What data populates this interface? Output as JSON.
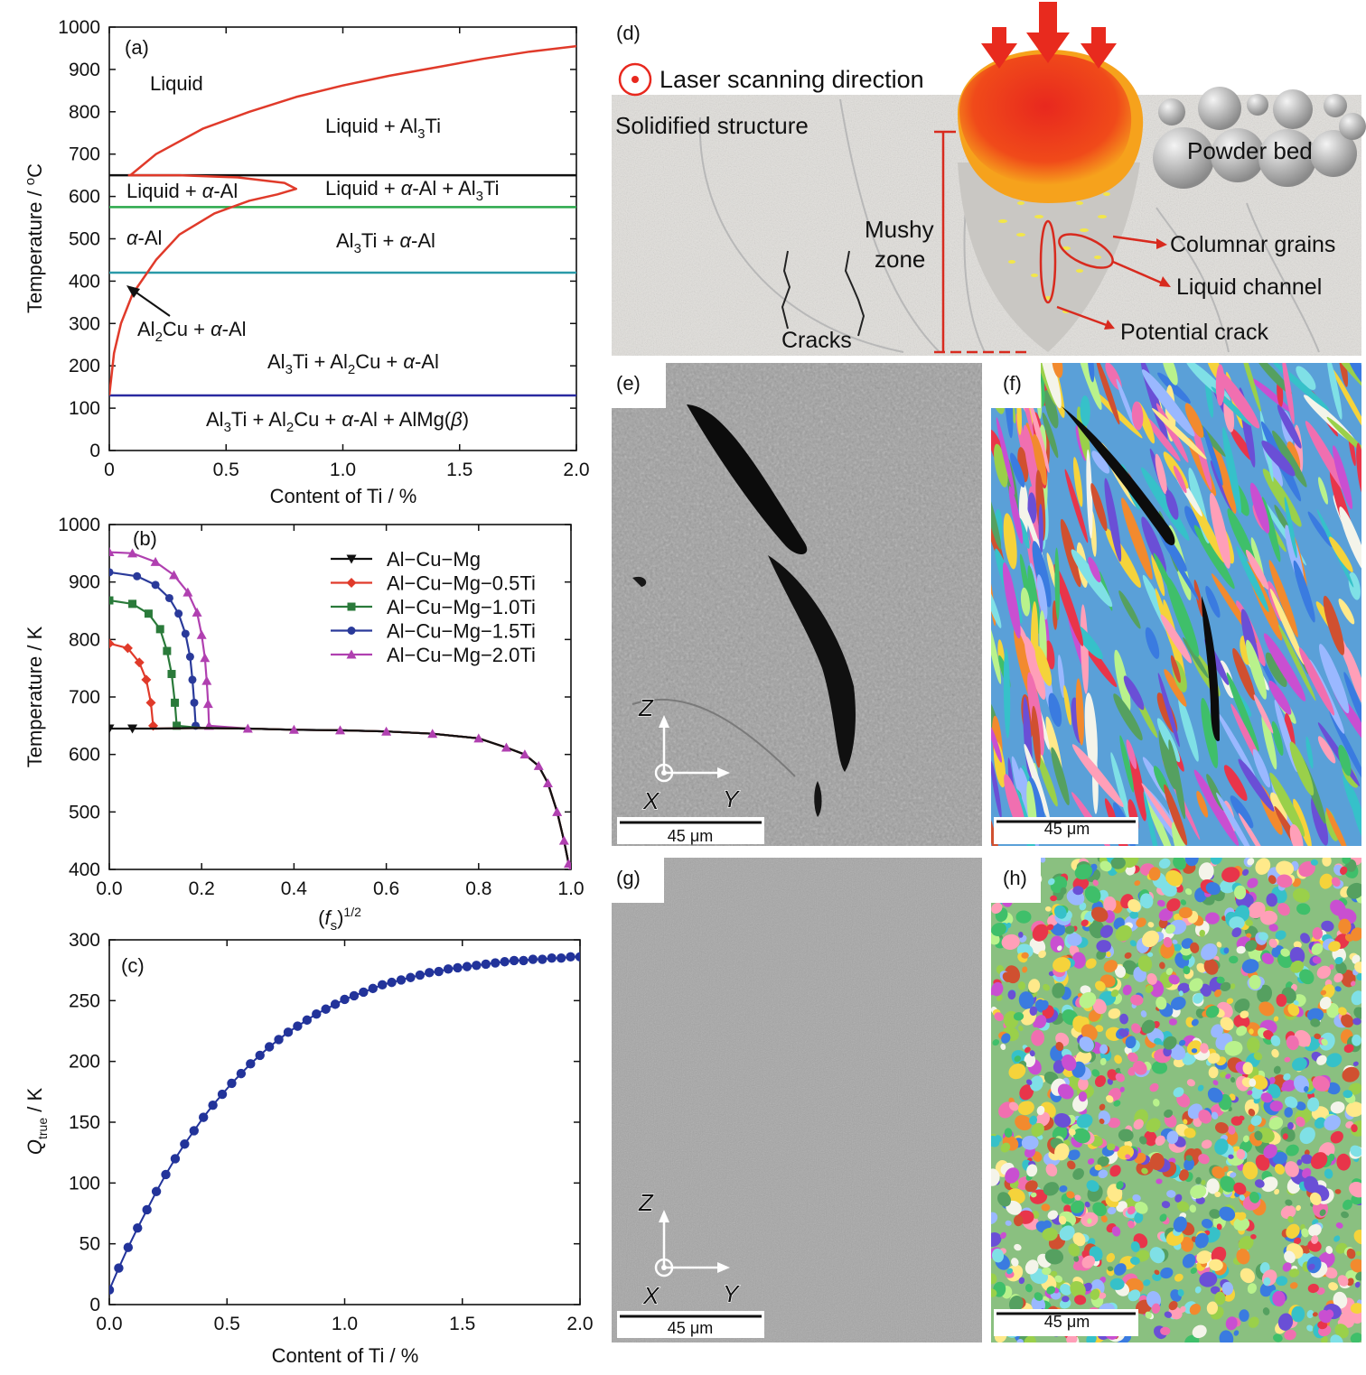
{
  "chart_data": [
    {
      "panel": "(a)",
      "type": "line",
      "xlabel": "Content of Ti / %",
      "ylabel": "Temperature / °C",
      "xlim": [
        0,
        2.0
      ],
      "ylim": [
        0,
        1000
      ],
      "xticks": [
        "0",
        "0.5",
        "1.0",
        "1.5",
        "2.0"
      ],
      "yticks": [
        "0",
        "100",
        "200",
        "300",
        "400",
        "500",
        "600",
        "700",
        "800",
        "900",
        "1000"
      ],
      "colors": {
        "liquidus": "#e03a2a",
        "eutectic": "#111111",
        "solvus_green": "#2aa84a",
        "solvus_teal": "#2a9aa8",
        "solvus_blue": "#2a2aa0"
      },
      "curves": {
        "liquidus_Al3Ti": [
          [
            0.09,
            650
          ],
          [
            0.2,
            700
          ],
          [
            0.4,
            760
          ],
          [
            0.6,
            800
          ],
          [
            0.8,
            835
          ],
          [
            1.0,
            862
          ],
          [
            1.2,
            885
          ],
          [
            1.4,
            905
          ],
          [
            1.6,
            925
          ],
          [
            1.8,
            942
          ],
          [
            2.0,
            955
          ]
        ],
        "alpha_Al_loop": [
          [
            0.08,
            650
          ],
          [
            0.3,
            650
          ],
          [
            0.55,
            645
          ],
          [
            0.75,
            632
          ],
          [
            0.8,
            618
          ],
          [
            0.72,
            605
          ],
          [
            0.6,
            590
          ],
          [
            0.45,
            560
          ],
          [
            0.3,
            510
          ],
          [
            0.2,
            450
          ],
          [
            0.1,
            370
          ],
          [
            0.05,
            300
          ],
          [
            0.02,
            230
          ],
          [
            0.0,
            130
          ]
        ],
        "horizontal_lines": [
          {
            "T": 650,
            "role": "eutectic"
          },
          {
            "T": 575,
            "role": "solvus_green"
          },
          {
            "T": 420,
            "role": "solvus_teal"
          },
          {
            "T": 130,
            "role": "solvus_blue"
          }
        ]
      },
      "labels": {
        "liquid": "Liquid",
        "liquid_al3ti": "Liquid + Al3Ti",
        "liquid_alpha": "Liquid + α-Al",
        "liquid_alpha_al3ti": "Liquid + α-Al + Al3Ti",
        "alpha": "α-Al",
        "al3ti_alpha": "Al3Ti + α-Al",
        "al2cu_alpha": "Al2Cu + α-Al",
        "al3ti_al2cu_alpha": "Al3Ti + Al2Cu + α-Al",
        "al3ti_al2cu_alpha_almg": "Al3Ti + Al2Cu + α-Al + AlMg(β)"
      }
    },
    {
      "panel": "(b)",
      "type": "line",
      "xlabel": "(fs)1/2",
      "ylabel": "Temperature / K",
      "xlim": [
        0,
        1.0
      ],
      "ylim": [
        400,
        1000
      ],
      "xticks": [
        "0.0",
        "0.2",
        "0.4",
        "0.6",
        "0.8",
        "1.0"
      ],
      "yticks": [
        "400",
        "500",
        "600",
        "700",
        "800",
        "900",
        "1000"
      ],
      "common_plateau": [
        [
          0.0,
          645
        ],
        [
          0.1,
          645
        ],
        [
          0.2,
          646
        ],
        [
          0.3,
          645
        ],
        [
          0.4,
          643
        ],
        [
          0.5,
          642
        ],
        [
          0.6,
          640
        ],
        [
          0.7,
          636
        ],
        [
          0.8,
          628
        ],
        [
          0.86,
          612
        ],
        [
          0.9,
          600
        ],
        [
          0.93,
          580
        ],
        [
          0.95,
          550
        ],
        [
          0.97,
          500
        ],
        [
          0.985,
          450
        ],
        [
          0.995,
          410
        ],
        [
          1.0,
          400
        ]
      ],
      "series": [
        {
          "name": "Al−Cu−Mg",
          "color": "#111111",
          "marker": "triangle-down",
          "start": [
            [
              0.0,
              645
            ],
            [
              0.05,
              645
            ]
          ]
        },
        {
          "name": "Al−Cu−Mg−0.5Ti",
          "color": "#e03a2a",
          "marker": "diamond",
          "start": [
            [
              0.0,
              793
            ],
            [
              0.04,
              785
            ],
            [
              0.065,
              760
            ],
            [
              0.08,
              730
            ],
            [
              0.09,
              690
            ],
            [
              0.095,
              650
            ]
          ]
        },
        {
          "name": "Al−Cu−Mg−1.0Ti",
          "color": "#2a7a3a",
          "marker": "square",
          "start": [
            [
              0.0,
              868
            ],
            [
              0.05,
              862
            ],
            [
              0.085,
              845
            ],
            [
              0.11,
              818
            ],
            [
              0.125,
              780
            ],
            [
              0.135,
              740
            ],
            [
              0.142,
              690
            ],
            [
              0.146,
              650
            ]
          ]
        },
        {
          "name": "Al−Cu−Mg−1.5Ti",
          "color": "#2a3a9a",
          "marker": "circle",
          "start": [
            [
              0.0,
              917
            ],
            [
              0.06,
              910
            ],
            [
              0.1,
              895
            ],
            [
              0.13,
              872
            ],
            [
              0.15,
              845
            ],
            [
              0.165,
              810
            ],
            [
              0.175,
              770
            ],
            [
              0.18,
              730
            ],
            [
              0.184,
              690
            ],
            [
              0.187,
              650
            ]
          ]
        },
        {
          "name": "Al−Cu−Mg−2.0Ti",
          "color": "#b040b0",
          "marker": "triangle-up",
          "start": [
            [
              0.0,
              952
            ],
            [
              0.05,
              950
            ],
            [
              0.1,
              935
            ],
            [
              0.14,
              912
            ],
            [
              0.17,
              882
            ],
            [
              0.19,
              847
            ],
            [
              0.2,
              808
            ],
            [
              0.207,
              768
            ],
            [
              0.211,
              728
            ],
            [
              0.214,
              688
            ],
            [
              0.216,
              650
            ]
          ]
        }
      ]
    },
    {
      "panel": "(c)",
      "type": "scatter",
      "xlabel": "Content of Ti / %",
      "ylabel": "Qtrue / K",
      "xlim": [
        0,
        2.0
      ],
      "ylim": [
        0,
        300
      ],
      "xticks": [
        "0.0",
        "0.5",
        "1.0",
        "1.5",
        "2.0"
      ],
      "yticks": [
        "0",
        "50",
        "100",
        "150",
        "200",
        "250",
        "300"
      ],
      "color": "#22339a",
      "x": [
        0.0,
        0.04,
        0.08,
        0.12,
        0.16,
        0.2,
        0.24,
        0.28,
        0.32,
        0.36,
        0.4,
        0.44,
        0.48,
        0.52,
        0.56,
        0.6,
        0.64,
        0.68,
        0.72,
        0.76,
        0.8,
        0.84,
        0.88,
        0.92,
        0.96,
        1.0,
        1.04,
        1.08,
        1.12,
        1.16,
        1.2,
        1.24,
        1.28,
        1.32,
        1.36,
        1.4,
        1.44,
        1.48,
        1.52,
        1.56,
        1.6,
        1.64,
        1.68,
        1.72,
        1.76,
        1.8,
        1.84,
        1.88,
        1.92,
        1.96,
        2.0
      ],
      "y": [
        12,
        30,
        47,
        63,
        78,
        93,
        107,
        120,
        132,
        143,
        154,
        164,
        173,
        182,
        190,
        198,
        205,
        212,
        218,
        224,
        229,
        234,
        239,
        243,
        247,
        251,
        254,
        257,
        260,
        263,
        265,
        267,
        269,
        271,
        273,
        274,
        276,
        277,
        278,
        279,
        280,
        281,
        282,
        283,
        283,
        284,
        284,
        285,
        285,
        286,
        286
      ]
    }
  ],
  "schematic_d": {
    "panel": "(d)",
    "title": "Laser scanning direction",
    "labels": {
      "solidified": "Solidified structure",
      "powder": "Powder bed",
      "mushy1": "Mushy",
      "mushy2": "zone",
      "columnar": "Columnar grains",
      "liquid_channel": "Liquid channel",
      "potential_crack": "Potential crack",
      "cracks": "Cracks"
    }
  },
  "micrographs": {
    "e": {
      "panel": "(e)",
      "scale": "45 μm",
      "axis_z": "Z",
      "axis_x": "X",
      "axis_y": "Y"
    },
    "f": {
      "panel": "(f)",
      "scale": "45 μm"
    },
    "g": {
      "panel": "(g)",
      "scale": "45 μm",
      "axis_z": "Z",
      "axis_x": "X",
      "axis_y": "Y"
    },
    "h": {
      "panel": "(h)",
      "scale": "45 μm"
    }
  }
}
